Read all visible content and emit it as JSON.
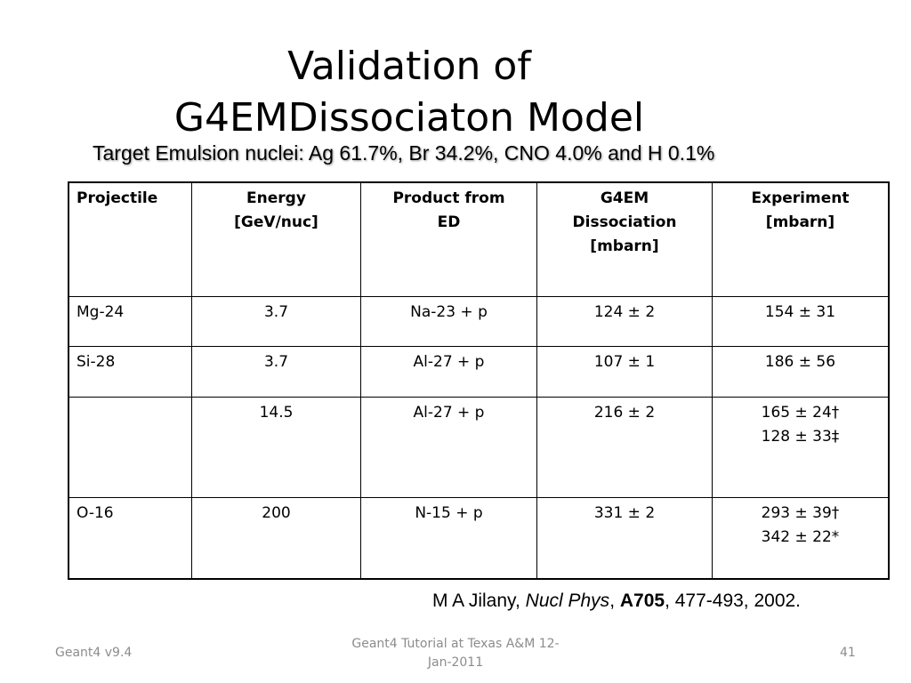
{
  "slide": {
    "title_line1": "Validation of",
    "title_line2": "G4EMDissociaton Model",
    "subtitle": "Target Emulsion nuclei: Ag 61.7%, Br 34.2%, CNO 4.0% and H 0.1%"
  },
  "table": {
    "headers": [
      [
        "Projectile"
      ],
      [
        "Energy",
        "[GeV/nuc]"
      ],
      [
        "Product from",
        "ED"
      ],
      [
        "G4EM",
        "Dissociation",
        "[mbarn]"
      ],
      [
        "Experiment",
        "[mbarn]"
      ]
    ],
    "rows": [
      [
        [
          "Mg-24"
        ],
        [
          "3.7"
        ],
        [
          "Na-23 + p"
        ],
        [
          "124 ± 2"
        ],
        [
          "154 ± 31"
        ]
      ],
      [
        [
          "Si-28"
        ],
        [
          "3.7"
        ],
        [
          "Al-27 + p"
        ],
        [
          "107 ± 1"
        ],
        [
          "186 ± 56"
        ]
      ],
      [
        [
          ""
        ],
        [
          "14.5"
        ],
        [
          "Al-27 + p"
        ],
        [
          "216 ± 2"
        ],
        [
          "165 ± 24†",
          "128 ± 33‡"
        ]
      ],
      [
        [
          "O-16"
        ],
        [
          "200"
        ],
        [
          "N-15 + p"
        ],
        [
          "331 ± 2"
        ],
        [
          "293 ± 39†",
          "342 ± 22*"
        ]
      ]
    ]
  },
  "citation": {
    "author": "M A Jilany, ",
    "journal": "Nucl Phys",
    "sep1": ", ",
    "volume": "A705",
    "rest": ", 477-493, 2002."
  },
  "footer": {
    "left": "Geant4 v9.4",
    "center_line1": "Geant4 Tutorial at Texas A&M 12-",
    "center_line2": "Jan-2011",
    "page_number": "41"
  }
}
